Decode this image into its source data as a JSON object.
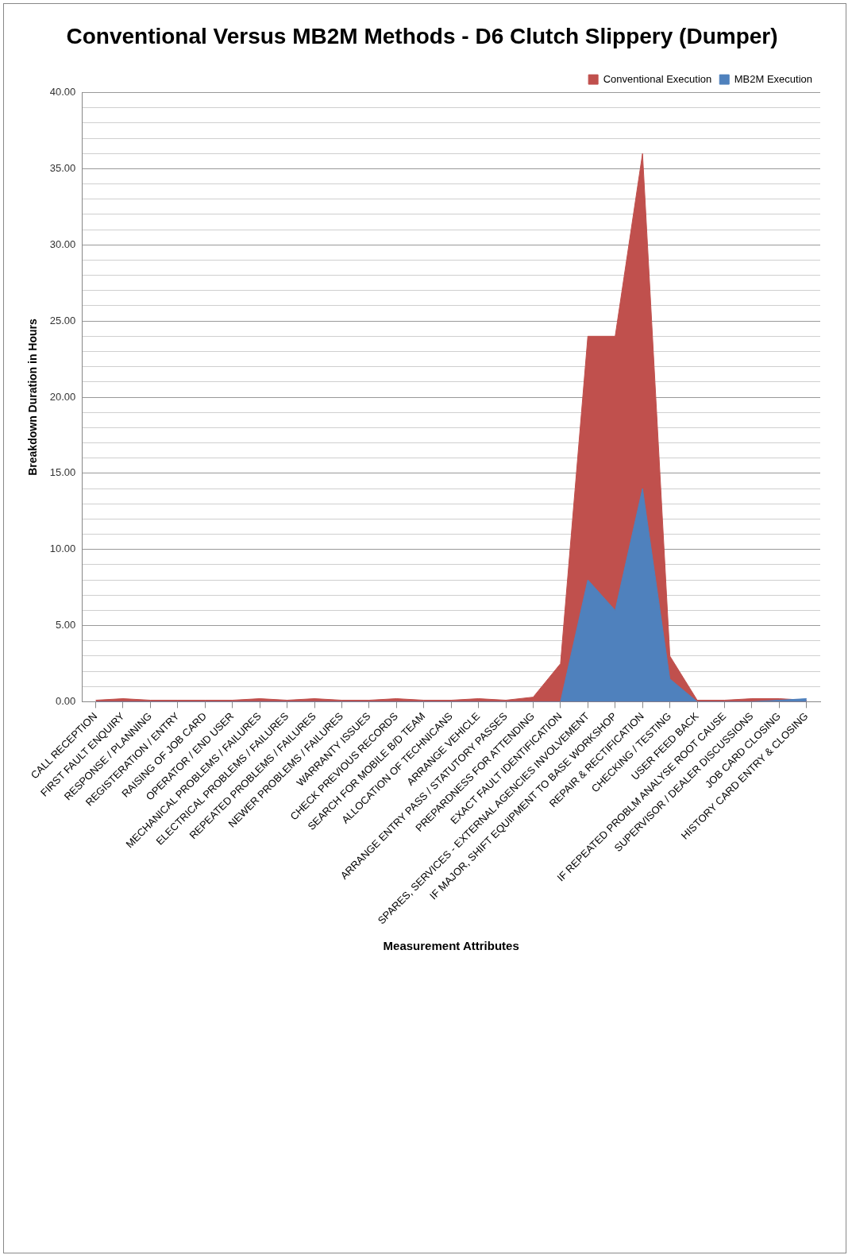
{
  "chart_data": {
    "type": "area",
    "title": "Conventional Versus MB2M Methods - D6 Clutch Slippery (Dumper)",
    "xlabel": "Measurement Attributes",
    "ylabel": "Breakdown Duration in Hours",
    "categories": [
      "CALL RECEPTION",
      "FIRST FAULT ENQUIRY",
      "RESPONSE / PLANNING",
      "REGISTERATION / ENTRY",
      "RAISING OF JOB CARD",
      "OPERATOR / END USER",
      "MECHANICAL PROBLEMS / FAILURES",
      "ELECTRICAL PROBLEMS / FAILURES",
      "REPEATED PROBLEMS / FAILURES",
      "NEWER PROBLEMS / FAILURES",
      "WARRANTY ISSUES",
      "CHECK PREVIOUS RECORDS",
      "SEARCH FOR MOBILE B/D TEAM",
      "ALLOCATION OF TECHNICANS",
      "ARRANGE VEHICLE",
      "ARRANGE ENTRY PASS / STATUTORY PASSES",
      "PREPARDNESS FOR ATTENDING",
      "EXACT FAULT IDENTIFICATION",
      "SPARES, SERVICES - EXTERNAL AGENCIES INVOLVEMENT",
      "IF MAJOR, SHIFT EQUIPMENT TO BASE WORKSHOP",
      "REPAIR & RECTIFICATION",
      "CHECKING / TESTING",
      "USER FEED BACK",
      "IF REPEATED PROBLM ANALYSE ROOT CAUSE",
      "SUPERVISOR / DEALER DISCUSSIONS",
      "JOB CARD CLOSING",
      "HISTORY CARD ENTRY & CLOSING"
    ],
    "series": [
      {
        "name": "Conventional Execution",
        "color": "#c0504d",
        "values": [
          0.1,
          0.2,
          0.1,
          0.1,
          0.1,
          0.1,
          0.2,
          0.1,
          0.2,
          0.1,
          0.1,
          0.2,
          0.1,
          0.1,
          0.2,
          0.1,
          0.3,
          2.5,
          24,
          24,
          36,
          3,
          0.1,
          0.1,
          0.2,
          0.2,
          0.1
        ]
      },
      {
        "name": "MB2M Execution",
        "color": "#4f81bd",
        "values": [
          0,
          0,
          0,
          0,
          0,
          0,
          0,
          0,
          0,
          0,
          0,
          0,
          0,
          0,
          0,
          0,
          0,
          0,
          8,
          6,
          14,
          1.5,
          0,
          0,
          0,
          0.1,
          0.2
        ]
      }
    ],
    "ylim": [
      0,
      40
    ],
    "yticks": [
      {
        "value": 0,
        "label": "0.00"
      },
      {
        "value": 1,
        "label": null
      },
      {
        "value": 2,
        "label": null
      },
      {
        "value": 3,
        "label": null
      },
      {
        "value": 4,
        "label": null
      },
      {
        "value": 5,
        "label": "5.00"
      },
      {
        "value": 6,
        "label": null
      },
      {
        "value": 7,
        "label": null
      },
      {
        "value": 8,
        "label": null
      },
      {
        "value": 9,
        "label": null
      },
      {
        "value": 10,
        "label": "10.00"
      },
      {
        "value": 11,
        "label": null
      },
      {
        "value": 12,
        "label": null
      },
      {
        "value": 13,
        "label": null
      },
      {
        "value": 14,
        "label": null
      },
      {
        "value": 15,
        "label": "15.00"
      },
      {
        "value": 16,
        "label": null
      },
      {
        "value": 17,
        "label": null
      },
      {
        "value": 18,
        "label": null
      },
      {
        "value": 19,
        "label": null
      },
      {
        "value": 20,
        "label": "20.00"
      },
      {
        "value": 21,
        "label": null
      },
      {
        "value": 22,
        "label": null
      },
      {
        "value": 23,
        "label": null
      },
      {
        "value": 24,
        "label": null
      },
      {
        "value": 25,
        "label": "25.00"
      },
      {
        "value": 26,
        "label": null
      },
      {
        "value": 27,
        "label": null
      },
      {
        "value": 28,
        "label": null
      },
      {
        "value": 29,
        "label": null
      },
      {
        "value": 30,
        "label": "30.00"
      },
      {
        "value": 31,
        "label": null
      },
      {
        "value": 32,
        "label": null
      },
      {
        "value": 33,
        "label": null
      },
      {
        "value": 34,
        "label": null
      },
      {
        "value": 35,
        "label": "35.00"
      },
      {
        "value": 36,
        "label": null
      },
      {
        "value": 37,
        "label": null
      },
      {
        "value": 38,
        "label": null
      },
      {
        "value": 39,
        "label": null
      },
      {
        "value": 40,
        "label": "40.00"
      }
    ],
    "grid": "y",
    "legend": "top right"
  }
}
